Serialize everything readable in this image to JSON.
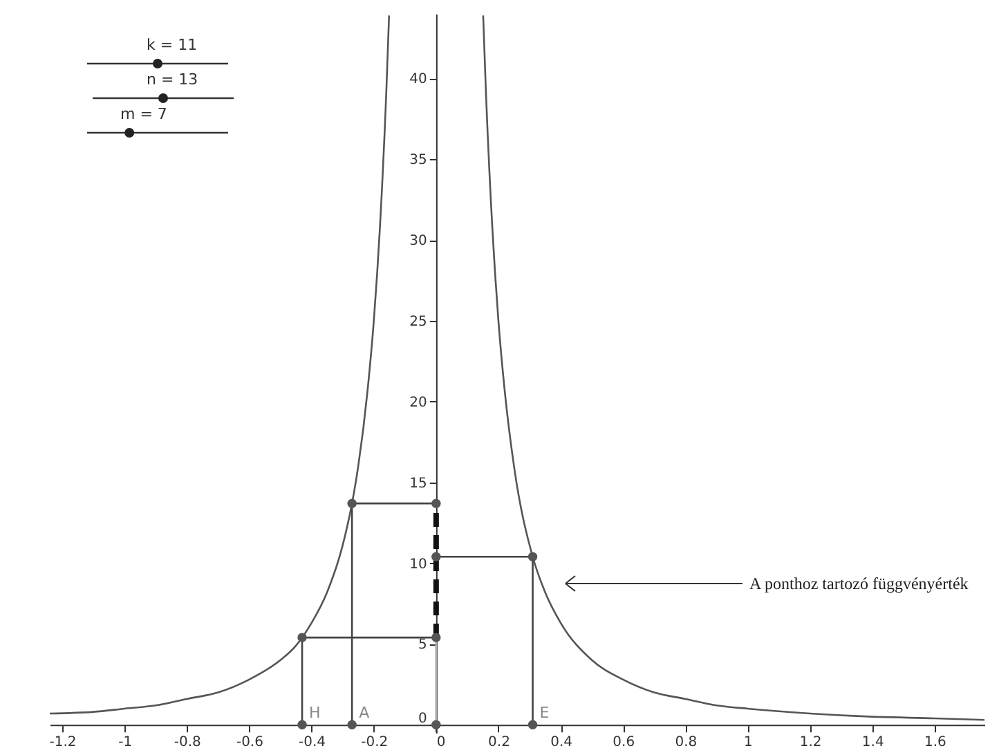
{
  "chart_data": {
    "type": "line",
    "xlim": [
      -1.24,
      1.76
    ],
    "ylim": [
      -0.5,
      44
    ],
    "xticks": [
      -1.2,
      -1,
      -0.8,
      -0.6,
      -0.4,
      -0.2,
      0,
      0.2,
      0.4,
      0.6,
      0.8,
      1,
      1.2,
      1.4,
      1.6
    ],
    "yticks": [
      0,
      5,
      10,
      15,
      20,
      25,
      30,
      35,
      40
    ],
    "series": [
      {
        "color": "#555555",
        "x": [
          -1.24,
          -1.1,
          -1,
          -0.9,
          -0.8,
          -0.7,
          -0.6,
          -0.5,
          -0.45,
          -0.4,
          -0.35,
          -0.3,
          -0.27,
          -0.25,
          -0.22,
          -0.2,
          -0.18,
          -0.16,
          -0.151,
          0,
          0.151,
          0.16,
          0.18,
          0.2,
          0.22,
          0.25,
          0.31,
          0.35,
          0.4,
          0.5,
          0.6,
          0.7,
          0.8,
          0.9,
          1,
          1.2,
          1.4,
          1.6,
          1.76
        ],
        "values": [
          0.7,
          0.8,
          1,
          1.2,
          1.6,
          2,
          2.8,
          4,
          4.9,
          6.3,
          8.2,
          11.1,
          13.7,
          16,
          20.7,
          25,
          30.9,
          39.1,
          43.9,
          null,
          43.9,
          39.1,
          30.9,
          25,
          20.7,
          16,
          10.4,
          8.2,
          6.3,
          4,
          2.8,
          2,
          1.6,
          1.2,
          1,
          0.7,
          0.5,
          0.4,
          0.3
        ]
      },
      {
        "color": "#444444",
        "x": [
          -0.43,
          -0.43,
          0
        ],
        "values": [
          0,
          5.4,
          5.4
        ]
      },
      {
        "color": "#444444",
        "x": [
          -0.27,
          -0.27,
          0
        ],
        "values": [
          0,
          13.7,
          13.7
        ]
      },
      {
        "color": "#444444",
        "x": [
          0.31,
          0.31,
          0
        ],
        "values": [
          0,
          10.4,
          10.4
        ]
      },
      {
        "color": "#aaaaaa",
        "x": [
          0,
          0
        ],
        "values": [
          0,
          5.4
        ]
      },
      {
        "color": "#111111",
        "line_style": "dashed",
        "x": [
          0,
          0
        ],
        "values": [
          5.4,
          13.7
        ]
      },
      {
        "type": "scatter",
        "marker": "circle",
        "color": "#555555",
        "x": [
          -0.43,
          -0.27,
          0,
          0.31,
          -0.43,
          -0.27,
          0.31,
          0,
          0,
          0
        ],
        "values": [
          0,
          0,
          0,
          0,
          5.4,
          13.7,
          10.4,
          5.4,
          13.7,
          10.4
        ]
      }
    ],
    "annotations": [
      "k = 11",
      "n = 13",
      "m = 7",
      {
        "text": "H",
        "x": -0.43,
        "y": 0
      },
      {
        "text": "A",
        "x": -0.27,
        "y": 0
      },
      {
        "text": "E",
        "x": 0.31,
        "y": 0
      },
      "A ponthoz tartozó függvényérték"
    ]
  }
}
